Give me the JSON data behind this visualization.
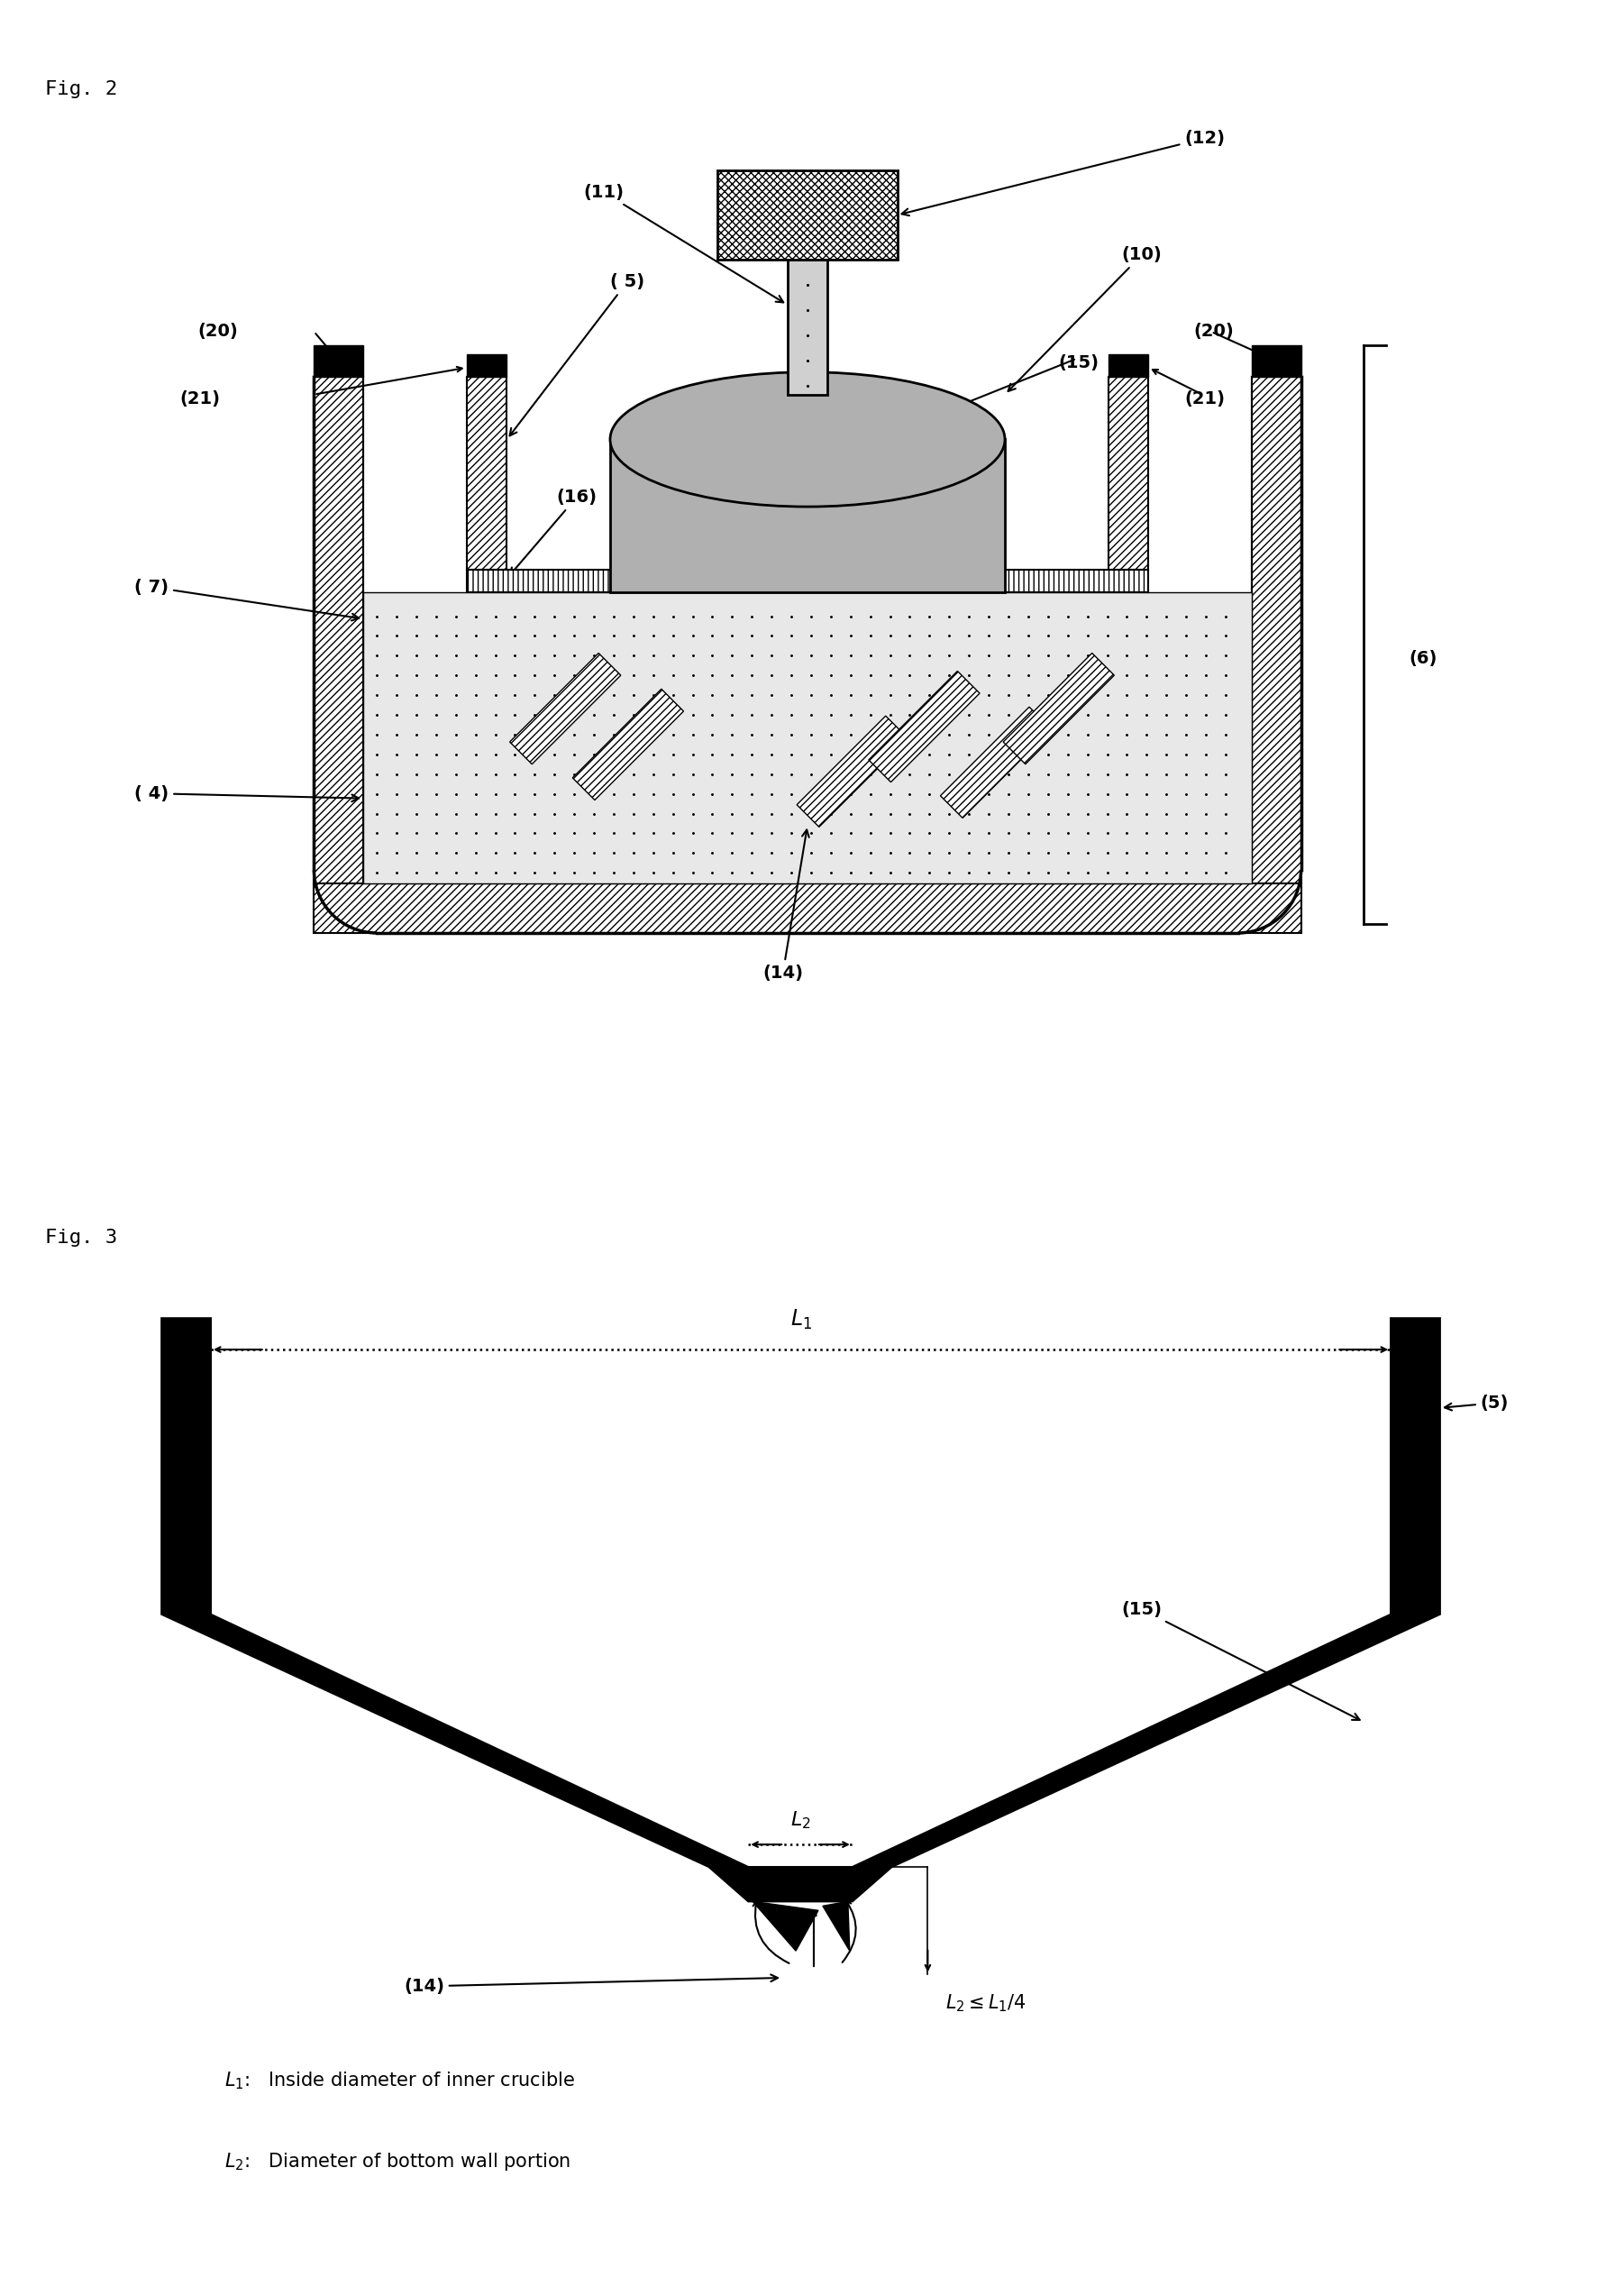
{
  "fig2_label": "Fig. 2",
  "fig3_label": "Fig. 3",
  "background_color": "#ffffff",
  "text_color": "#000000",
  "label_fontsize": 14,
  "fig_label_fontsize": 16
}
